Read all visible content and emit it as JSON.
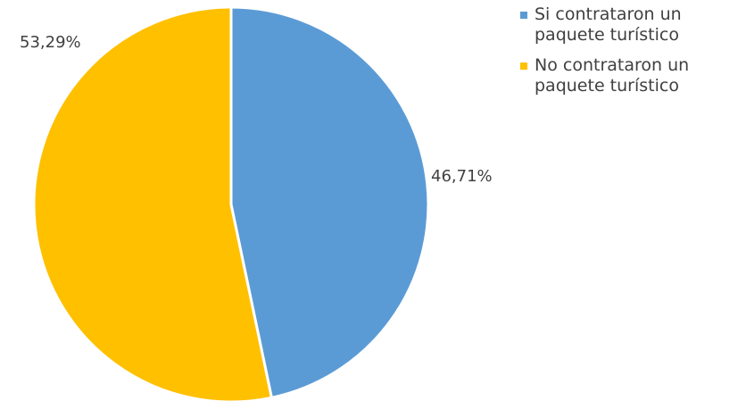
{
  "chart_data": {
    "type": "pie",
    "title": "",
    "categories": [
      "Si contrataron un paquete turístico",
      "No contrataron un paquete turístico"
    ],
    "values": [
      46.71,
      53.29
    ],
    "value_unit": "%",
    "data_labels": [
      "46,71%",
      "53,29%"
    ],
    "legend": {
      "placement": "right",
      "entries": [
        {
          "label_lines": [
            "Si contrataron un",
            "paquete turístico"
          ],
          "color": "#5b9bd5"
        },
        {
          "label_lines": [
            "No contrataron un",
            "paquete turístico"
          ],
          "color": "#ffc000"
        }
      ]
    },
    "colors": [
      "#5b9bd5",
      "#ffc000"
    ],
    "start_angle_deg": 0,
    "direction": "clockwise"
  }
}
